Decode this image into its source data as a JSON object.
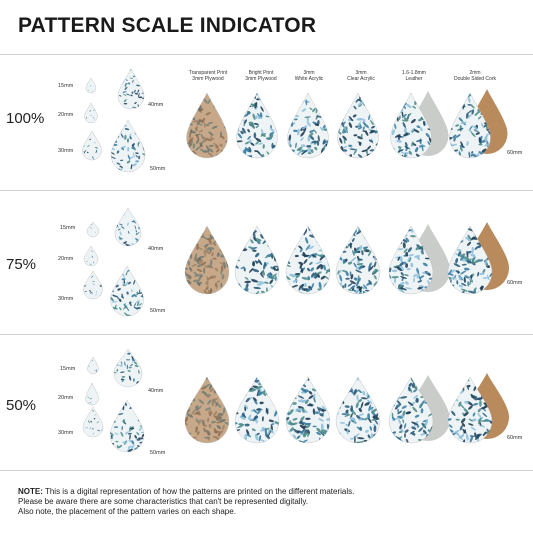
{
  "title": "PATTERN SCALE INDICATOR",
  "materials": [
    {
      "line1": "Transparent Print",
      "line2": "3mm Plywood"
    },
    {
      "line1": "Bright Print",
      "line2": "3mm Plywood"
    },
    {
      "line1": "3mm",
      "line2": "White Acrylic"
    },
    {
      "line1": "3mm",
      "line2": "Clear Acrylic"
    },
    {
      "line1": "1.6-1.8mm",
      "line2": "Leather"
    },
    {
      "line1": "2mm",
      "line2": "Double Sided Cork"
    }
  ],
  "sizes": {
    "s15": "15mm",
    "s20": "20mm",
    "s30": "30mm",
    "s40": "40mm",
    "s50": "50mm",
    "s60": "60mm"
  },
  "rows": [
    {
      "scale": "100%"
    },
    {
      "scale": "75%"
    },
    {
      "scale": "50%"
    }
  ],
  "note": {
    "bold": "NOTE:",
    "line1": " This is a digital representation of how the patterns are printed on the different materials.",
    "line2": "Please be aware there are some characteristics that can't be represented digitally.",
    "line3": "Also note, the placement of the pattern varies on each shape."
  },
  "colors": {
    "plywood": "#c7a98a",
    "cork": "#b98a5c",
    "leather": "#c9ccc8",
    "pattern_bg": "#eef3f6",
    "leaf_dark": "#1f3f57",
    "leaf_mid": "#3b7ea3",
    "leaf_light": "#8fc1dc",
    "leaf_teal": "#4f8e8a"
  }
}
